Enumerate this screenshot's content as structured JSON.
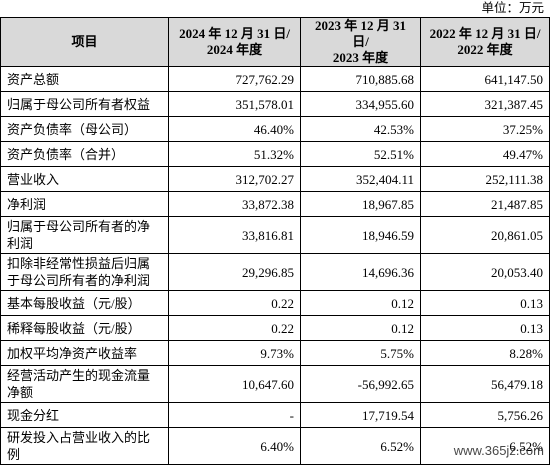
{
  "unit": "单位：万元",
  "table": {
    "header": [
      [
        "项目"
      ],
      [
        "2024 年 12 月 31 日/",
        "2024 年度"
      ],
      [
        "2023 年 12 月 31 日/",
        "2023 年度"
      ],
      [
        "2022 年 12 月 31 日/",
        "2022 年度"
      ]
    ],
    "rows": [
      [
        "资产总额",
        "727,762.29",
        "710,885.68",
        "641,147.50"
      ],
      [
        "归属于母公司所有者权益",
        "351,578.01",
        "334,955.60",
        "321,387.45"
      ],
      [
        "资产负债率（母公司）",
        "46.40%",
        "42.53%",
        "37.25%"
      ],
      [
        "资产负债率（合并）",
        "51.32%",
        "52.51%",
        "49.47%"
      ],
      [
        "营业收入",
        "312,702.27",
        "352,404.11",
        "252,111.38"
      ],
      [
        "净利润",
        "33,872.38",
        "18,967.85",
        "21,487.85"
      ],
      [
        "归属于母公司所有者的净利润",
        "33,816.81",
        "18,946.59",
        "20,861.05"
      ],
      [
        "扣除非经常性损益后归属于母公司所有者的净利润",
        "29,296.85",
        "14,696.36",
        "20,053.40"
      ],
      [
        "基本每股收益（元/股）",
        "0.22",
        "0.12",
        "0.13"
      ],
      [
        "稀释每股收益（元/股）",
        "0.22",
        "0.12",
        "0.13"
      ],
      [
        "加权平均净资产收益率",
        "9.73%",
        "5.75%",
        "8.28%"
      ],
      [
        "经营活动产生的现金流量净额",
        "10,647.60",
        "-56,992.65",
        "56,479.18"
      ],
      [
        "现金分红",
        "-",
        "17,719.54",
        "5,756.26"
      ],
      [
        "研发投入占营业收入的比例",
        "6.40%",
        "6.52%",
        "6.52%"
      ]
    ]
  },
  "watermark": "www.365jz.com"
}
